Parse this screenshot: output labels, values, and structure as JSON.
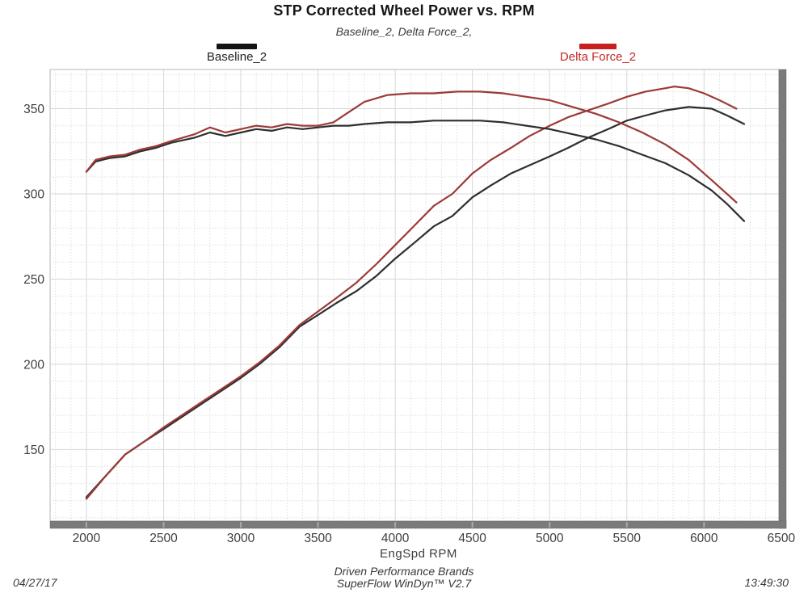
{
  "footer": {
    "brand_line": "Driven Performance Brands",
    "software_line": "SuperFlow WinDyn™ V2.7",
    "date": "04/27/17",
    "time": "13:49:30"
  },
  "chart_data": {
    "type": "line",
    "title": "STP Corrected Wheel Power vs. RPM",
    "subtitle": "Baseline_2, Delta Force_2,",
    "xlabel": "EngSpd  RPM",
    "ylabel": "",
    "xlim": [
      1765,
      6485
    ],
    "ylim": [
      108,
      373
    ],
    "x_ticks": [
      2000,
      2500,
      3000,
      3500,
      4000,
      4500,
      5000,
      5500,
      6000,
      6500
    ],
    "y_ticks": [
      150,
      200,
      250,
      300,
      350
    ],
    "x_minor_step": 100,
    "y_minor_step": 10,
    "grid": "on",
    "legend_position": "top",
    "legend": [
      {
        "label": "Baseline_2",
        "swatch_color": "#141414",
        "text_color": "#222222"
      },
      {
        "label": "Delta Force_2",
        "swatch_color": "#c9201d",
        "text_color": "#c22a26"
      }
    ],
    "series": [
      {
        "name": "Baseline_2 power",
        "run": "Baseline_2",
        "color": "#2e2e2e",
        "x": [
          2000,
          2120,
          2250,
          2380,
          2500,
          2750,
          3000,
          3120,
          3250,
          3380,
          3500,
          3620,
          3750,
          3880,
          4000,
          4120,
          4250,
          4370,
          4500,
          4620,
          4750,
          4850,
          5000,
          5120,
          5250,
          5380,
          5500,
          5620,
          5750,
          5900,
          6050,
          6150,
          6260
        ],
        "y": [
          122,
          134,
          147,
          155,
          162,
          177,
          192,
          200,
          210,
          222,
          229,
          236,
          243,
          252,
          262,
          271,
          281,
          287,
          298,
          305,
          312,
          316,
          322,
          327,
          333,
          338,
          343,
          346,
          349,
          351,
          350,
          346,
          341
        ]
      },
      {
        "name": "Delta Force_2 power",
        "run": "Delta Force_2",
        "color": "#9c3a38",
        "x": [
          2000,
          2120,
          2250,
          2380,
          2500,
          2750,
          3000,
          3120,
          3250,
          3380,
          3500,
          3620,
          3750,
          3880,
          4000,
          4120,
          4250,
          4370,
          4500,
          4620,
          4750,
          4870,
          5000,
          5120,
          5250,
          5380,
          5500,
          5620,
          5750,
          5810,
          5900,
          6000,
          6100,
          6210
        ],
        "y": [
          121,
          134,
          147,
          155,
          163,
          178,
          193,
          201,
          211,
          223,
          231,
          239,
          248,
          259,
          270,
          281,
          293,
          300,
          312,
          320,
          327,
          334,
          340,
          345,
          349,
          353,
          357,
          360,
          362,
          363,
          362,
          359,
          355,
          350
        ]
      },
      {
        "name": "Baseline_2 torque",
        "run": "Baseline_2",
        "color": "#2e2e2e",
        "x": [
          2000,
          2060,
          2150,
          2250,
          2350,
          2450,
          2550,
          2700,
          2800,
          2900,
          3000,
          3100,
          3200,
          3300,
          3400,
          3500,
          3600,
          3700,
          3800,
          3950,
          4100,
          4250,
          4400,
          4550,
          4700,
          4850,
          5000,
          5150,
          5300,
          5450,
          5600,
          5750,
          5900,
          6050,
          6150,
          6260
        ],
        "y": [
          313,
          319,
          321,
          322,
          325,
          327,
          330,
          333,
          336,
          334,
          336,
          338,
          337,
          339,
          338,
          339,
          340,
          340,
          341,
          342,
          342,
          343,
          343,
          343,
          342,
          340,
          338,
          335,
          332,
          328,
          323,
          318,
          311,
          302,
          294,
          284
        ]
      },
      {
        "name": "Delta Force_2 torque",
        "run": "Delta Force_2",
        "color": "#9c3a38",
        "x": [
          2000,
          2060,
          2150,
          2250,
          2350,
          2450,
          2550,
          2700,
          2800,
          2900,
          3000,
          3100,
          3200,
          3300,
          3400,
          3500,
          3600,
          3700,
          3800,
          3950,
          4100,
          4250,
          4400,
          4550,
          4700,
          4850,
          5000,
          5150,
          5300,
          5450,
          5600,
          5750,
          5900,
          6050,
          6210
        ],
        "y": [
          313,
          320,
          322,
          323,
          326,
          328,
          331,
          335,
          339,
          336,
          338,
          340,
          339,
          341,
          340,
          340,
          342,
          348,
          354,
          358,
          359,
          359,
          360,
          360,
          359,
          357,
          355,
          351,
          347,
          342,
          336,
          329,
          320,
          308,
          295
        ]
      }
    ],
    "colors": {
      "grid_minor": "#dedede",
      "grid_major": "#d7d7d7",
      "plot_border": "#b4b4b4",
      "edge_bars": "#7a7a7a",
      "tick_text": "#3e3e3e"
    }
  }
}
